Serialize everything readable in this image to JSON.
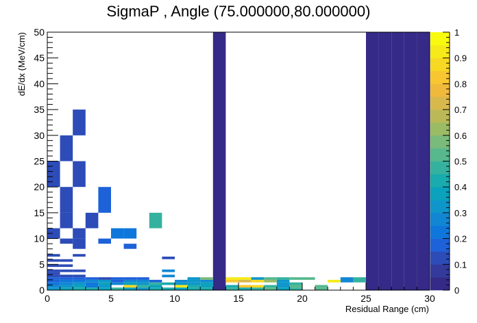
{
  "chart_data": {
    "type": "heatmap",
    "title": "SigmaP , Angle (75.000000,80.000000)",
    "xlabel": "Residual Range (cm)",
    "ylabel": "dE/dx (MeV/cm)",
    "xlim": [
      0,
      30
    ],
    "ylim": [
      0,
      50
    ],
    "zlim": [
      0,
      1
    ],
    "x_ticks": [
      "0",
      "5",
      "10",
      "15",
      "20",
      "25",
      "30"
    ],
    "y_ticks": [
      "0",
      "5",
      "10",
      "15",
      "20",
      "25",
      "30",
      "35",
      "40",
      "45",
      "50"
    ],
    "z_ticks": [
      "0",
      "0.1",
      "0.2",
      "0.3",
      "0.4",
      "0.5",
      "0.6",
      "0.7",
      "0.8",
      "0.9",
      "1"
    ],
    "palette": [
      "#352a87",
      "#343a9c",
      "#2d4cb8",
      "#1e62d9",
      "#0f77db",
      "#1187d4",
      "#0e96ca",
      "#0aa2bd",
      "#19abad",
      "#35b29f",
      "#57b88d",
      "#7aba7a",
      "#9cbb65",
      "#bbb957",
      "#d7b84c",
      "#efb93c",
      "#f8c630",
      "#f7d823",
      "#f6ea18",
      "#f9fb0e"
    ],
    "bin_width": [
      1,
      0.5
    ],
    "cells": [
      [
        13,
        0,
        50,
        0.0
      ],
      [
        25,
        0,
        50,
        0.0
      ],
      [
        26,
        0,
        50,
        0.0
      ],
      [
        27,
        0,
        50,
        0.0
      ],
      [
        28,
        0,
        50,
        0.0
      ],
      [
        29,
        0,
        50,
        0.0
      ],
      [
        2,
        30,
        35,
        0.1
      ],
      [
        1,
        25,
        30,
        0.1
      ],
      [
        0,
        20,
        25,
        0.1
      ],
      [
        2,
        20,
        25,
        0.1
      ],
      [
        1,
        15,
        20,
        0.1
      ],
      [
        4,
        15,
        20,
        0.15
      ],
      [
        1,
        12,
        15,
        0.1
      ],
      [
        3,
        12,
        15,
        0.1
      ],
      [
        8,
        12,
        15,
        0.45
      ],
      [
        0,
        10,
        12,
        0.1
      ],
      [
        2,
        10,
        12,
        0.1
      ],
      [
        5,
        10,
        12,
        0.2
      ],
      [
        6,
        10,
        12,
        0.2
      ],
      [
        1,
        9,
        10,
        0.1
      ],
      [
        2,
        8,
        10,
        0.1
      ],
      [
        4,
        9,
        10,
        0.15
      ],
      [
        6,
        8,
        9,
        0.15
      ],
      [
        0,
        6.5,
        7,
        0.1
      ],
      [
        2,
        6.5,
        7,
        0.1
      ],
      [
        9,
        6,
        6.5,
        0.1
      ],
      [
        0,
        5.5,
        6,
        0.1
      ],
      [
        1,
        5.5,
        6,
        0.1
      ],
      [
        0,
        4.5,
        5,
        0.1
      ],
      [
        1,
        4.5,
        5,
        0.1
      ],
      [
        0,
        3.5,
        4,
        0.1
      ],
      [
        1,
        3.5,
        4,
        0.1
      ],
      [
        2,
        3.5,
        4,
        0.1
      ],
      [
        9,
        3.5,
        4,
        0.25
      ],
      [
        0,
        3,
        3.5,
        0.1
      ],
      [
        0,
        2.5,
        3,
        0.1
      ],
      [
        1,
        2.5,
        3,
        0.1
      ],
      [
        2,
        2.5,
        3,
        0.1
      ],
      [
        9,
        2.5,
        3,
        0.25
      ],
      [
        0,
        2,
        2.5,
        0.15
      ],
      [
        1,
        2,
        2.5,
        0.15
      ],
      [
        2,
        2,
        2.5,
        0.15
      ],
      [
        3,
        2,
        2.5,
        0.15
      ],
      [
        4,
        2,
        2.5,
        0.1
      ],
      [
        5,
        2,
        2.5,
        0.15
      ],
      [
        6,
        2,
        2.5,
        0.15
      ],
      [
        7,
        2,
        2.5,
        0.15
      ],
      [
        11,
        2,
        2.5,
        0.3
      ],
      [
        12,
        2,
        2.5,
        0.55
      ],
      [
        14,
        2,
        2.5,
        0.9
      ],
      [
        15,
        2,
        2.5,
        0.9
      ],
      [
        16,
        2,
        2.5,
        0.3
      ],
      [
        17,
        2,
        2.5,
        0.5
      ],
      [
        18,
        2,
        2.5,
        0.45
      ],
      [
        19,
        2,
        2.5,
        0.5
      ],
      [
        20,
        2,
        2.5,
        0.5
      ],
      [
        23,
        1.5,
        2.5,
        0.25
      ],
      [
        24,
        1.5,
        2.5,
        0.45
      ],
      [
        0,
        1.5,
        2,
        0.15
      ],
      [
        1,
        1.5,
        2,
        0.2
      ],
      [
        2,
        1.5,
        2,
        0.2
      ],
      [
        3,
        1.5,
        2,
        0.25
      ],
      [
        4,
        1.5,
        2,
        0.3
      ],
      [
        5,
        1.5,
        2,
        0.15
      ],
      [
        6,
        1.5,
        2,
        0.25
      ],
      [
        7,
        1.5,
        2,
        0.25
      ],
      [
        8,
        1.5,
        2,
        0.15
      ],
      [
        10,
        1.5,
        2,
        0.25
      ],
      [
        11,
        1.5,
        2,
        0.3
      ],
      [
        12,
        1.5,
        2,
        0.25
      ],
      [
        14,
        1.5,
        2,
        0.8
      ],
      [
        15,
        1.5,
        2,
        0.7
      ],
      [
        16,
        1.5,
        2,
        0.85
      ],
      [
        17,
        1.5,
        2,
        0.6
      ],
      [
        18,
        1.5,
        2,
        0.3
      ],
      [
        22,
        1.5,
        2,
        0.9
      ],
      [
        0,
        1,
        1.5,
        0.2
      ],
      [
        1,
        1,
        1.5,
        0.25
      ],
      [
        2,
        1,
        1.5,
        0.3
      ],
      [
        3,
        1,
        1.5,
        0.2
      ],
      [
        4,
        1,
        1.5,
        0.35
      ],
      [
        5,
        1,
        1.5,
        0.25
      ],
      [
        6,
        1,
        1.5,
        0.35
      ],
      [
        7,
        1,
        1.5,
        0.3
      ],
      [
        8,
        1,
        1.5,
        0.45
      ],
      [
        9,
        1,
        1.5,
        0.4
      ],
      [
        10,
        1,
        1.5,
        0.3
      ],
      [
        11,
        1,
        1.5,
        0.3
      ],
      [
        12,
        1,
        1.5,
        0.35
      ],
      [
        18,
        1,
        1.5,
        0.3
      ],
      [
        19,
        1,
        1.5,
        0.45
      ],
      [
        0,
        0.5,
        1,
        0.25
      ],
      [
        1,
        0.5,
        1,
        0.3
      ],
      [
        2,
        0.5,
        1,
        0.35
      ],
      [
        3,
        0.5,
        1,
        0.2
      ],
      [
        4,
        0.5,
        1,
        0.3
      ],
      [
        6,
        0.5,
        1,
        0.85
      ],
      [
        7,
        0.5,
        1,
        0.45
      ],
      [
        8,
        0.5,
        1,
        0.35
      ],
      [
        10,
        0.5,
        1,
        0.9
      ],
      [
        11,
        0.5,
        1,
        0.4
      ],
      [
        12,
        0.5,
        1,
        0.35
      ],
      [
        14,
        0.5,
        1,
        0.4
      ],
      [
        15,
        0.5,
        1,
        0.8
      ],
      [
        16,
        0.5,
        1,
        0.85
      ],
      [
        17,
        0.5,
        1,
        0.45
      ],
      [
        18,
        0.5,
        1,
        0.3
      ],
      [
        19,
        0.5,
        1,
        0.5
      ],
      [
        21,
        0.5,
        1,
        0.5
      ],
      [
        0,
        0,
        0.5,
        0.3
      ],
      [
        1,
        0,
        0.5,
        0.35
      ],
      [
        2,
        0,
        0.5,
        0.4
      ],
      [
        3,
        0,
        0.5,
        0.4
      ],
      [
        4,
        0,
        0.5,
        0.35
      ],
      [
        5,
        0,
        0.5,
        0.45
      ],
      [
        6,
        0,
        0.5,
        0.35
      ],
      [
        7,
        0,
        0.5,
        0.3
      ],
      [
        8,
        0,
        0.5,
        0.4
      ],
      [
        9,
        0,
        0.5,
        0.4
      ],
      [
        10,
        0,
        0.5,
        0.35
      ],
      [
        11,
        0,
        0.5,
        0.4
      ],
      [
        12,
        0,
        0.5,
        0.4
      ],
      [
        14,
        0,
        0.5,
        0.45
      ],
      [
        15,
        0,
        0.5,
        0.4
      ],
      [
        16,
        0,
        0.5,
        0.45
      ],
      [
        17,
        0,
        0.5,
        0.5
      ],
      [
        18,
        0,
        0.5,
        0.35
      ],
      [
        19,
        0,
        0.5,
        0.45
      ],
      [
        21,
        0,
        0.5,
        0.5
      ]
    ]
  }
}
